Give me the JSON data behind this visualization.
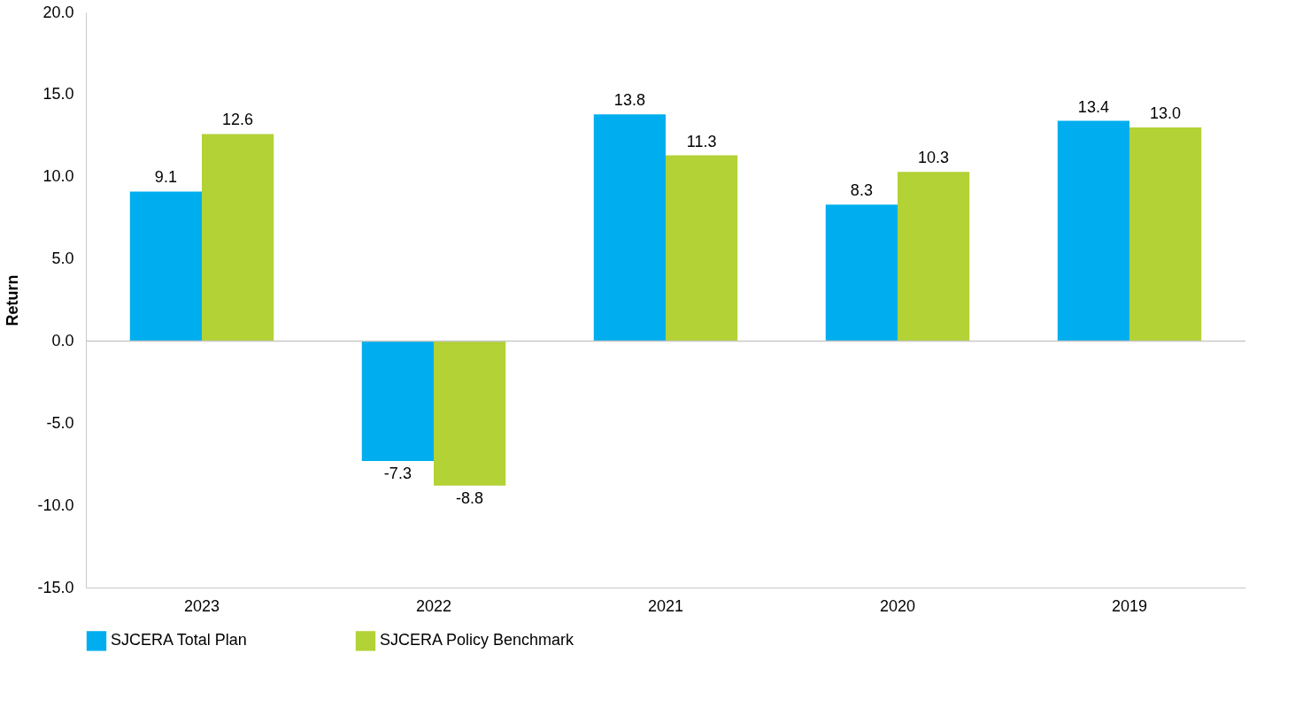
{
  "chart_data": {
    "type": "bar",
    "ylabel": "Return",
    "categories": [
      "2023",
      "2022",
      "2021",
      "2020",
      "2019"
    ],
    "series": [
      {
        "name": "SJCERA Total Plan",
        "color": "#00aeef",
        "values": [
          9.1,
          -7.3,
          13.8,
          8.3,
          13.4
        ],
        "value_labels": [
          "9.1",
          "-7.3",
          "13.8",
          "8.3",
          "13.4"
        ]
      },
      {
        "name": "SJCERA Policy Benchmark",
        "color": "#b2d235",
        "values": [
          12.6,
          -8.8,
          11.3,
          10.3,
          13.0
        ],
        "value_labels": [
          "12.6",
          "-8.8",
          "11.3",
          "10.3",
          "13.0"
        ]
      }
    ],
    "ylim": [
      -15,
      20
    ],
    "yticks": [
      {
        "value": -15,
        "label": "-15.0"
      },
      {
        "value": -10,
        "label": "-10.0"
      },
      {
        "value": -5,
        "label": "-5.0"
      },
      {
        "value": 0,
        "label": "0.0"
      },
      {
        "value": 5,
        "label": "5.0"
      },
      {
        "value": 10,
        "label": "10.0"
      },
      {
        "value": 15,
        "label": "15.0"
      },
      {
        "value": 20,
        "label": "20.0"
      }
    ],
    "ref_lines": [
      {
        "axis": "y",
        "value": 0,
        "label": null,
        "color": "#c8c8c8"
      }
    ],
    "grid": false,
    "legend": "bottom"
  }
}
